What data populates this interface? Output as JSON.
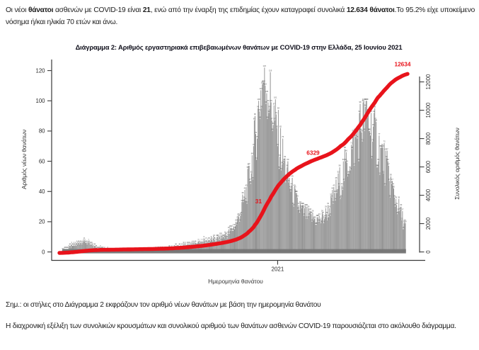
{
  "page": {
    "intro_paragraph": {
      "segments": [
        {
          "text": "Οι νέοι ",
          "bold": false
        },
        {
          "text": "θάνατοι",
          "bold": true
        },
        {
          "text": " ασθενών με COVID-19 είναι ",
          "bold": false
        },
        {
          "text": "21",
          "bold": true
        },
        {
          "text": ", ενώ από την έναρξη της επιδημίας έχουν καταγραφεί συνολικά ",
          "bold": false
        },
        {
          "text": "12.634 θάνατοι",
          "bold": true
        },
        {
          "text": ".Το 95.2% είχε υποκείμενο νόσημα ή/και ηλικία 70 ετών και άνω.",
          "bold": false
        }
      ]
    },
    "note_line": "Σημ.: οι στήλες στο Διάγραμμα 2 εκφράζουν τον αριθμό νέων θανάτων με βάση την ημερομηνία θανάτου",
    "closing_paragraph": "Η διαχρονική εξέλιξη των συνολικών κρουσμάτων και συνολικού αριθμού των θανάτων ασθενών COVID-19 παρουσιάζεται στο ακόλουθο διάγραμμα."
  },
  "chart_data": {
    "type": "bar",
    "title": "Διάγραμμα 2: Αριθμός εργαστηριακά επιβεβαιωμένων θανάτων με COVID-19 στην Ελλάδα, 25 Ιουνίου 2021",
    "xlabel": "Ημερομηνία θανάτου",
    "ylabel_left": "Αριθμός νέων θανάτων",
    "ylabel_right": "Συνολικός αριθμός θανάτων",
    "x_tick_labels": [
      "2021"
    ],
    "left_axis_ticks": [
      0,
      20,
      40,
      60,
      80,
      100,
      120
    ],
    "right_axis_ticks": [
      0,
      2000,
      4000,
      6000,
      8000,
      10000,
      12000
    ],
    "ylim_left": [
      0,
      120
    ],
    "ylim_right": [
      0,
      12000
    ],
    "grid": false,
    "legend": "none",
    "bar_color": "#9d9d9d",
    "bar_label_color": "#545454",
    "baseline_band_color": "#757575",
    "line_color": "#e8131b",
    "cumulative_total": 12634,
    "new_deaths_latest": 21,
    "series_description": {
      "bars": "daily laboratory-confirmed COVID-19 deaths by date of death, left axis",
      "line": "cumulative COVID-19 deaths, right axis"
    },
    "annotations": [
      {
        "text": "12634",
        "anchor_value": 12634,
        "partially_occluded": false
      },
      {
        "text": "6329",
        "anchor_value": 6329,
        "partially_occluded": true
      },
      {
        "text": "31",
        "anchor_value": 3150,
        "partially_occluded": true
      }
    ],
    "bars_span_days": 470,
    "jan1_2021_day_index": 295,
    "daily_new_deaths_keypoints": [
      [
        0,
        1
      ],
      [
        10,
        3
      ],
      [
        20,
        5
      ],
      [
        28,
        7
      ],
      [
        38,
        5
      ],
      [
        48,
        2.5
      ],
      [
        60,
        1.5
      ],
      [
        75,
        1
      ],
      [
        90,
        1
      ],
      [
        105,
        1
      ],
      [
        120,
        1
      ],
      [
        135,
        1.5
      ],
      [
        150,
        2.5
      ],
      [
        165,
        4
      ],
      [
        180,
        5
      ],
      [
        195,
        7
      ],
      [
        210,
        8
      ],
      [
        222,
        10
      ],
      [
        232,
        14
      ],
      [
        240,
        20
      ],
      [
        248,
        32
      ],
      [
        256,
        48
      ],
      [
        263,
        70
      ],
      [
        268,
        90
      ],
      [
        272,
        105
      ],
      [
        276,
        115
      ],
      [
        280,
        112
      ],
      [
        285,
        100
      ],
      [
        290,
        88
      ],
      [
        296,
        75
      ],
      [
        302,
        62
      ],
      [
        308,
        50
      ],
      [
        315,
        40
      ],
      [
        322,
        31
      ],
      [
        330,
        26
      ],
      [
        338,
        23
      ],
      [
        346,
        21
      ],
      [
        354,
        21
      ],
      [
        362,
        25
      ],
      [
        370,
        33
      ],
      [
        378,
        43
      ],
      [
        386,
        53
      ],
      [
        394,
        63
      ],
      [
        402,
        73
      ],
      [
        408,
        82
      ],
      [
        414,
        90
      ],
      [
        420,
        86
      ],
      [
        426,
        79
      ],
      [
        432,
        71
      ],
      [
        438,
        63
      ],
      [
        444,
        55
      ],
      [
        450,
        45
      ],
      [
        456,
        35
      ],
      [
        462,
        27
      ],
      [
        466,
        22
      ],
      [
        470,
        17
      ]
    ]
  }
}
